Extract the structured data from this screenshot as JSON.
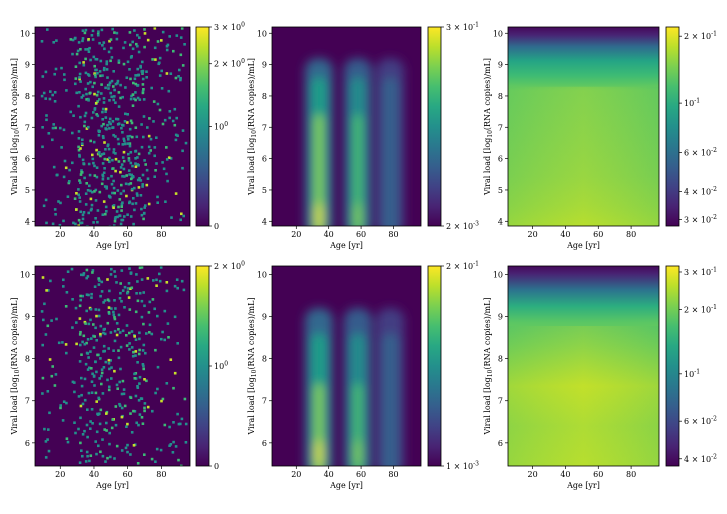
{
  "chart_data": [
    {
      "id": "top-left",
      "type": "heatmap",
      "style": "sparse",
      "xlabel": "Age [yr]",
      "ylabel": "Viral load [log10(RNA copies)/mL]",
      "xlim": [
        5,
        97
      ],
      "ylim": [
        3.85,
        10.2
      ],
      "xticks": [
        20,
        40,
        60,
        80
      ],
      "yticks": [
        4,
        5,
        6,
        7,
        8,
        9,
        10
      ],
      "colorbar": {
        "scale": "symlog",
        "min": 0,
        "max": 3,
        "ticks": [
          {
            "value": 0,
            "label": "0"
          },
          {
            "value": 1,
            "label": "10^0"
          },
          {
            "value": 2,
            "label": "2 × 10^0"
          },
          {
            "value": 3,
            "label": "3 × 10^0"
          }
        ]
      }
    },
    {
      "id": "top-middle",
      "type": "heatmap",
      "style": "peaks",
      "xlabel": "Age [yr]",
      "ylabel": "Viral load [log10(RNA copies)/mL]",
      "xlim": [
        5,
        97
      ],
      "ylim": [
        3.85,
        10.2
      ],
      "xticks": [
        20,
        40,
        60,
        80
      ],
      "yticks": [
        4,
        5,
        6,
        7,
        8,
        9,
        10
      ],
      "colorbar": {
        "scale": "log",
        "min": 0.002,
        "max": 0.3,
        "ticks": [
          {
            "value": 0.002,
            "label": "2 × 10^-3"
          },
          {
            "value": 0.3,
            "label": "3 × 10^-1"
          }
        ]
      }
    },
    {
      "id": "top-right",
      "type": "heatmap",
      "style": "smooth",
      "xlabel": "Age [yr]",
      "ylabel": "Viral load [log10(RNA copies)/mL]",
      "xlim": [
        5,
        97
      ],
      "ylim": [
        3.85,
        10.2
      ],
      "xticks": [
        20,
        40,
        60,
        80
      ],
      "yticks": [
        4,
        5,
        6,
        7,
        8,
        9,
        10
      ],
      "colorbar": {
        "scale": "log",
        "min": 0.028,
        "max": 0.22,
        "ticks": [
          {
            "value": 0.03,
            "label": "3 × 10^-2"
          },
          {
            "value": 0.04,
            "label": "4 × 10^-2"
          },
          {
            "value": 0.06,
            "label": "6 × 10^-2"
          },
          {
            "value": 0.1,
            "label": "10^-1"
          },
          {
            "value": 0.2,
            "label": "2 × 10^-1"
          }
        ]
      }
    },
    {
      "id": "bottom-left",
      "type": "heatmap",
      "style": "sparse",
      "xlabel": "Age [yr]",
      "ylabel": "Viral load [log10(RNA copies)/mL]",
      "xlim": [
        5,
        97
      ],
      "ylim": [
        5.45,
        10.2
      ],
      "xticks": [
        20,
        40,
        60,
        80
      ],
      "yticks": [
        6,
        7,
        8,
        9,
        10
      ],
      "colorbar": {
        "scale": "symlog",
        "min": 0,
        "max": 2,
        "ticks": [
          {
            "value": 0,
            "label": "0"
          },
          {
            "value": 1,
            "label": "10^0"
          },
          {
            "value": 2,
            "label": "2 × 10^0"
          }
        ]
      }
    },
    {
      "id": "bottom-middle",
      "type": "heatmap",
      "style": "peaks",
      "xlabel": "Age [yr]",
      "ylabel": "Viral load [log10(RNA copies)/mL]",
      "xlim": [
        5,
        97
      ],
      "ylim": [
        5.45,
        10.2
      ],
      "xticks": [
        20,
        40,
        60,
        80
      ],
      "yticks": [
        6,
        7,
        8,
        9,
        10
      ],
      "colorbar": {
        "scale": "log",
        "min": 0.001,
        "max": 0.2,
        "ticks": [
          {
            "value": 0.001,
            "label": "1 × 10^-3"
          },
          {
            "value": 0.2,
            "label": "2 × 10^-1"
          }
        ]
      }
    },
    {
      "id": "bottom-right",
      "type": "heatmap",
      "style": "smooth",
      "xlabel": "Age [yr]",
      "ylabel": "Viral load [log10(RNA copies)/mL]",
      "xlim": [
        5,
        97
      ],
      "ylim": [
        5.45,
        10.2
      ],
      "xticks": [
        20,
        40,
        60,
        80
      ],
      "yticks": [
        6,
        7,
        8,
        9,
        10
      ],
      "colorbar": {
        "scale": "log",
        "min": 0.037,
        "max": 0.32,
        "ticks": [
          {
            "value": 0.04,
            "label": "4 × 10^-2"
          },
          {
            "value": 0.06,
            "label": "6 × 10^-2"
          },
          {
            "value": 0.1,
            "label": "10^-1"
          },
          {
            "value": 0.2,
            "label": "2 × 10^-1"
          },
          {
            "value": 0.3,
            "label": "3 × 10^-1"
          }
        ]
      }
    }
  ]
}
